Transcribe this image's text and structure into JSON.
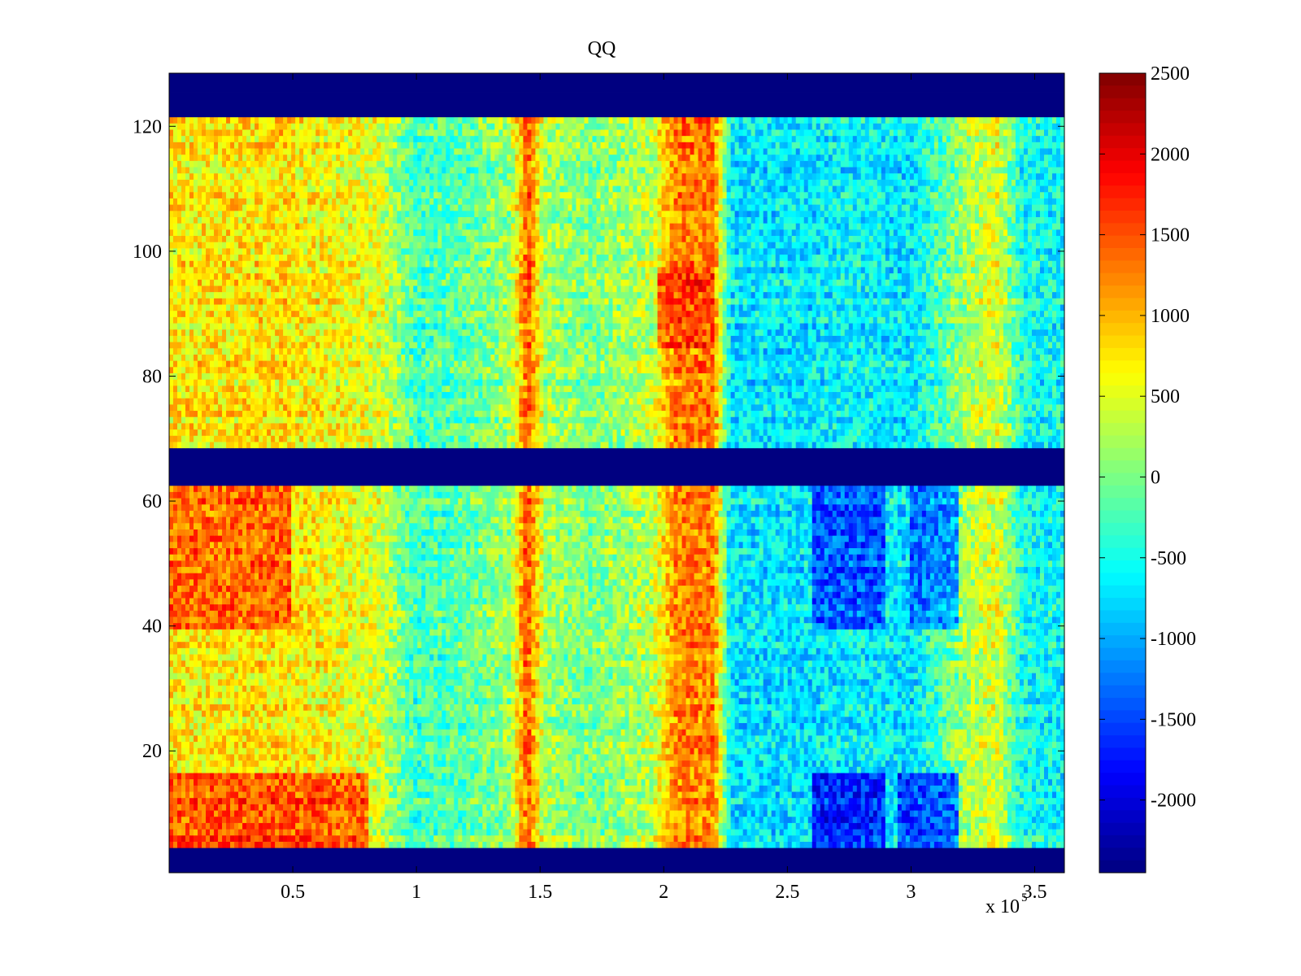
{
  "chart_data": {
    "type": "heatmap",
    "title": "QQ",
    "xlabel": "",
    "ylabel": "",
    "x_exponent_label": "x 10",
    "x_exponent_power": "5",
    "x_multiplier": 100000,
    "xlim": [
      0,
      3.62
    ],
    "ylim": [
      0.5,
      128.5
    ],
    "xticks": [
      0.5,
      1,
      1.5,
      2,
      2.5,
      3,
      3.5
    ],
    "xtick_labels": [
      "0.5",
      "1",
      "1.5",
      "2",
      "2.5",
      "3",
      "3.5"
    ],
    "yticks": [
      20,
      40,
      60,
      80,
      100,
      120
    ],
    "ytick_labels": [
      "20",
      "40",
      "60",
      "80",
      "100",
      "120"
    ],
    "colormap": "jet",
    "clim": [
      -2450,
      2500
    ],
    "colorbar": {
      "ticks": [
        2500,
        2000,
        1500,
        1000,
        500,
        0,
        -500,
        -1000,
        -1500,
        -2000
      ],
      "tick_labels": [
        "2500",
        "2000",
        "1500",
        "1000",
        "500",
        "0",
        "-500",
        "-1000",
        "-1500",
        "-2000"
      ]
    },
    "masked_rows": [
      [
        1,
        4
      ],
      [
        63,
        68
      ],
      [
        122,
        128
      ]
    ],
    "column_profile": [
      {
        "x": 0.0,
        "value": 700
      },
      {
        "x": 0.5,
        "value": 750
      },
      {
        "x": 0.85,
        "value": 450
      },
      {
        "x": 1.0,
        "value": -300
      },
      {
        "x": 1.2,
        "value": -150
      },
      {
        "x": 1.38,
        "value": 150
      },
      {
        "x": 1.45,
        "value": 1500
      },
      {
        "x": 1.52,
        "value": 200
      },
      {
        "x": 1.7,
        "value": 0
      },
      {
        "x": 1.95,
        "value": 300
      },
      {
        "x": 2.05,
        "value": 1250
      },
      {
        "x": 2.2,
        "value": 1300
      },
      {
        "x": 2.27,
        "value": -700
      },
      {
        "x": 2.6,
        "value": -700
      },
      {
        "x": 2.75,
        "value": -600
      },
      {
        "x": 3.0,
        "value": -700
      },
      {
        "x": 3.25,
        "value": 300
      },
      {
        "x": 3.35,
        "value": 500
      },
      {
        "x": 3.45,
        "value": -500
      },
      {
        "x": 3.62,
        "value": -600
      }
    ],
    "hot_regions": [
      {
        "x_range": [
          0.0,
          0.5
        ],
        "y_range": [
          40,
          62
        ],
        "value": 1700
      },
      {
        "x_range": [
          0.0,
          0.8
        ],
        "y_range": [
          5,
          16
        ],
        "value": 1900
      },
      {
        "x_range": [
          2.6,
          2.9
        ],
        "y_range": [
          5,
          16
        ],
        "value": -2100
      },
      {
        "x_range": [
          2.95,
          3.2
        ],
        "y_range": [
          5,
          16
        ],
        "value": -1900
      },
      {
        "x_range": [
          2.6,
          2.9
        ],
        "y_range": [
          40,
          62
        ],
        "value": -1800
      },
      {
        "x_range": [
          3.0,
          3.2
        ],
        "y_range": [
          40,
          62
        ],
        "value": -1600
      },
      {
        "x_range": [
          1.98,
          2.2
        ],
        "y_range": [
          85,
          97
        ],
        "value": 1700
      }
    ]
  }
}
